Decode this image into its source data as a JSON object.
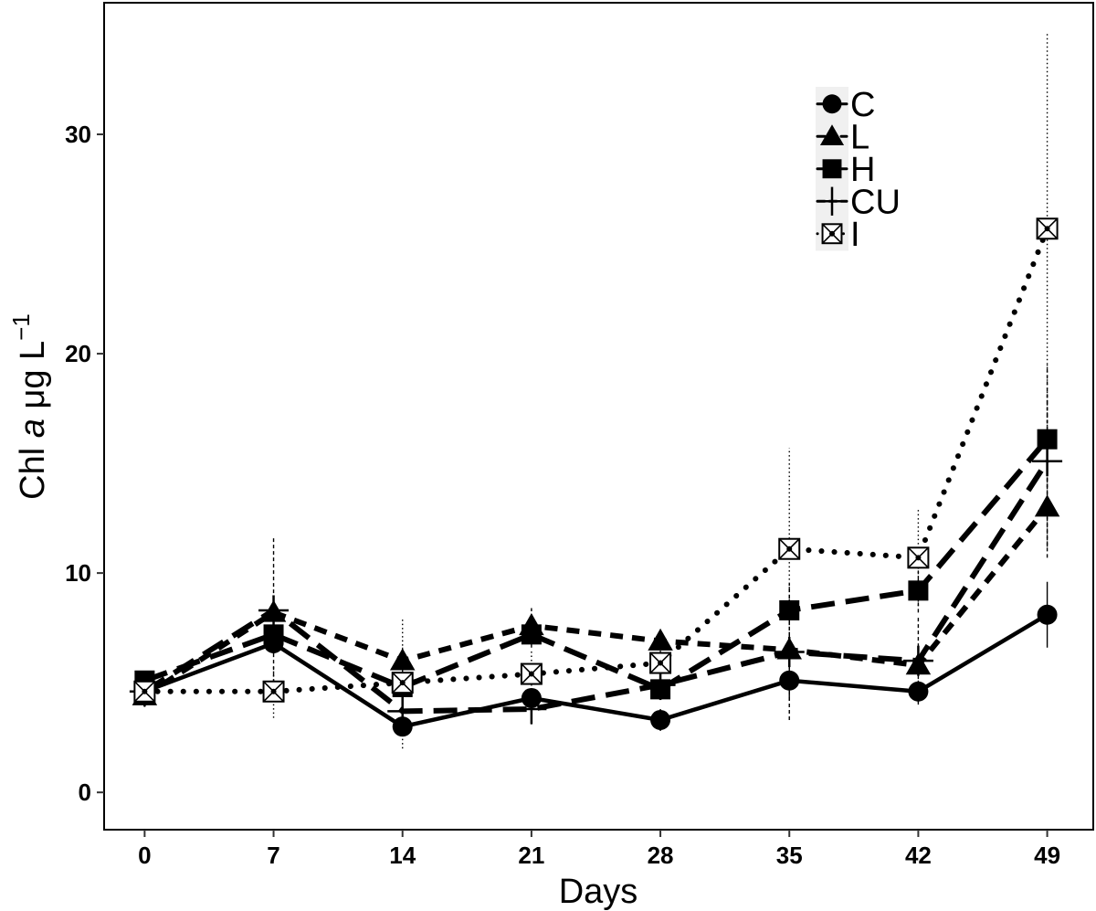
{
  "chart_data": {
    "type": "line",
    "xlabel": "Days",
    "ylabel": "Chl a μg L−1",
    "ylabel_parts": {
      "prefix": "Chl ",
      "italic": "a",
      "unit": " μg L",
      "sup": "−1"
    },
    "x": [
      0,
      7,
      14,
      21,
      28,
      35,
      42,
      49
    ],
    "x_ticks": [
      "0",
      "7",
      "14",
      "21",
      "28",
      "35",
      "42",
      "49"
    ],
    "y_ticks": [
      "0",
      "10",
      "20",
      "30"
    ],
    "y_tick_values": [
      0,
      10,
      20,
      30
    ],
    "ylim": [
      -1.7,
      36
    ],
    "xlim": [
      -2.2,
      51.5
    ],
    "grid": false,
    "legend_position": "top-right",
    "series": [
      {
        "name": "C",
        "marker": "circle",
        "line": "solid",
        "values": [
          4.6,
          6.8,
          3.0,
          4.3,
          3.3,
          5.1,
          4.6,
          8.1
        ],
        "err": [
          0.3,
          0.5,
          0.3,
          0.4,
          0.5,
          0.9,
          0.5,
          1.5
        ]
      },
      {
        "name": "L",
        "marker": "triangle",
        "line": "short-dash",
        "values": [
          4.4,
          8.2,
          6.0,
          7.6,
          6.9,
          6.5,
          5.8,
          13.0
        ],
        "err": [
          0.5,
          0.6,
          0.6,
          0.8,
          0.4,
          0.8,
          0.4,
          1.8
        ]
      },
      {
        "name": "H",
        "marker": "square",
        "line": "long-dash",
        "values": [
          5.1,
          7.2,
          4.8,
          7.2,
          4.7,
          8.3,
          9.2,
          16.1
        ],
        "err": [
          0.4,
          0.8,
          0.7,
          0.6,
          0.4,
          1.2,
          1.0,
          2.2
        ]
      },
      {
        "name": "CU",
        "marker": "plus",
        "line": "long-dash",
        "values": [
          4.6,
          8.3,
          3.7,
          3.8,
          4.9,
          6.4,
          6.0,
          15.1
        ],
        "err": [
          0.4,
          3.3,
          1.0,
          0.7,
          0.5,
          3.1,
          2.0,
          4.4
        ]
      },
      {
        "name": "I",
        "marker": "boxed-x",
        "line": "dotted",
        "values": [
          4.6,
          4.6,
          5.0,
          5.4,
          5.9,
          11.1,
          10.7,
          25.7
        ],
        "err": [
          0.5,
          1.2,
          3.0,
          1.1,
          1.0,
          4.6,
          2.2,
          9.0
        ]
      }
    ],
    "colors": {
      "ink": "#000000",
      "background": "#ffffff",
      "legend_bg": "#f0f0f0"
    }
  }
}
